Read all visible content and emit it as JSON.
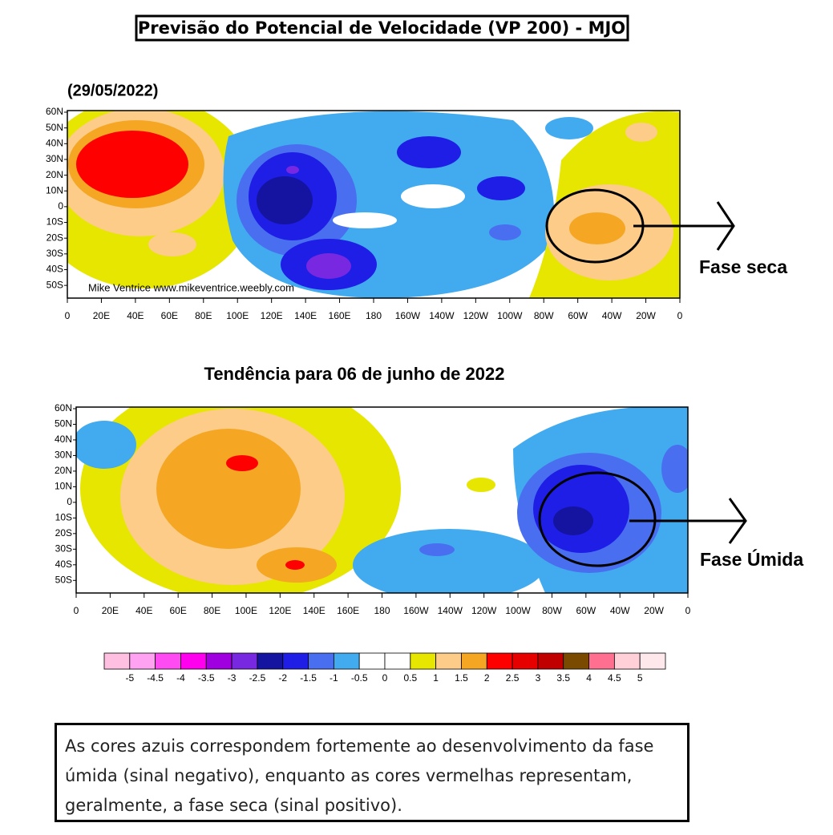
{
  "title": "Previsão do Potencial de Velocidade (VP 200) - MJO",
  "maps": [
    {
      "label": "(29/05/2022)",
      "credit": "Mike Ventrice www.mikeventrice.weebly.com",
      "annotation": "Fase seca",
      "lat_labels": [
        "60N",
        "50N",
        "40N",
        "30N",
        "20N",
        "10N",
        "0",
        "10S",
        "20S",
        "30S",
        "40S",
        "50S"
      ],
      "lon_labels": [
        "0",
        "20E",
        "40E",
        "60E",
        "80E",
        "100E",
        "120E",
        "140E",
        "160E",
        "180",
        "160W",
        "140W",
        "120W",
        "100W",
        "80W",
        "60W",
        "40W",
        "20W",
        "0"
      ]
    },
    {
      "label": "Tendência para 06 de junho de 2022",
      "annotation": "Fase Úmida",
      "lat_labels": [
        "60N",
        "50N",
        "40N",
        "30N",
        "20N",
        "10N",
        "0",
        "10S",
        "20S",
        "30S",
        "40S",
        "50S"
      ],
      "lon_labels": [
        "0",
        "20E",
        "40E",
        "60E",
        "80E",
        "100E",
        "120E",
        "140E",
        "160E",
        "180",
        "160W",
        "140W",
        "120W",
        "100W",
        "80W",
        "60W",
        "40W",
        "20W",
        "0"
      ]
    }
  ],
  "colorbar": {
    "colors": [
      "#ffbfe0",
      "#ffa2f2",
      "#ff4cf2",
      "#ff00ee",
      "#a000e0",
      "#7828e0",
      "#1414a0",
      "#1e1ee6",
      "#4a6ef0",
      "#42aaee",
      "#ffffff",
      "#ffffff",
      "#e6e600",
      "#fccc88",
      "#f5a623",
      "#ff0000",
      "#e60000",
      "#c00000",
      "#7a4a00",
      "#ff7090",
      "#ffd0d8",
      "#ffe8ec"
    ],
    "labels": [
      -5,
      -4.5,
      -4,
      -3.5,
      -3,
      -2.5,
      -2,
      -1.5,
      -1,
      -0.5,
      0,
      0.5,
      1,
      1.5,
      2,
      2.5,
      3,
      3.5,
      4,
      4.5,
      5
    ]
  },
  "note": "As cores azuis correspondem fortemente ao desenvolvimento da fase úmida (sinal negativo), enquanto as cores vermelhas representam, geralmente, a fase seca (sinal positivo)."
}
